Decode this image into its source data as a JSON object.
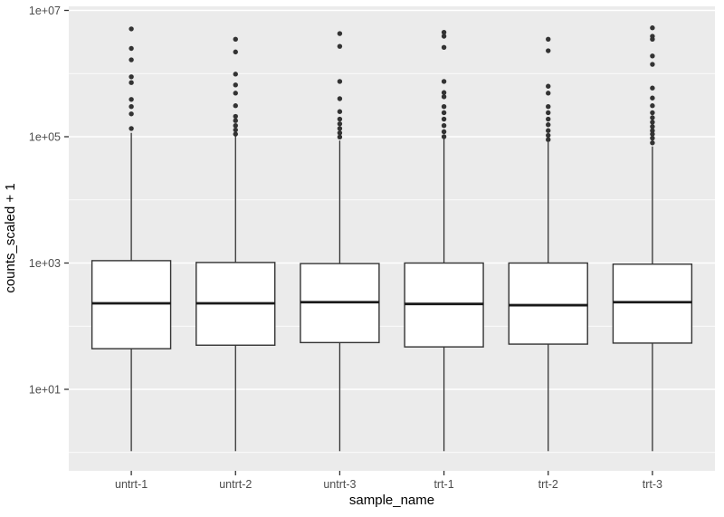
{
  "chart_data": {
    "type": "boxplot",
    "title": "",
    "xlabel": "sample_name",
    "ylabel": "counts_scaled + 1",
    "categories": [
      "untrt-1",
      "untrt-2",
      "untrt-3",
      "trt-1",
      "trt-2",
      "trt-3"
    ],
    "y_axis": {
      "scale": "log10",
      "major_ticks": [
        10,
        1000,
        100000,
        10000000
      ],
      "major_tick_labels": [
        "1e+01",
        "1e+03",
        "1e+05",
        "1e+07"
      ],
      "minor_ticks": [
        1,
        100,
        10000,
        1000000
      ],
      "ylim": [
        0.5,
        11500000
      ],
      "grid": true
    },
    "legend": "none",
    "series": [
      {
        "name": "untrt-1",
        "whisker_low": 1.05,
        "q1": 44,
        "median": 230,
        "q3": 1090,
        "whisker_high": 115000,
        "outliers": [
          5100000,
          2500000,
          1650000,
          890000,
          720000,
          390000,
          300000,
          230000,
          135000
        ]
      },
      {
        "name": "untrt-2",
        "whisker_low": 1.05,
        "q1": 50,
        "median": 230,
        "q3": 1020,
        "whisker_high": 103000,
        "outliers": [
          3500000,
          2200000,
          980000,
          660000,
          490000,
          310000,
          210000,
          180000,
          150000,
          128000,
          110000
        ]
      },
      {
        "name": "untrt-3",
        "whisker_low": 1.05,
        "q1": 55,
        "median": 240,
        "q3": 980,
        "whisker_high": 87000,
        "outliers": [
          4300000,
          2700000,
          750000,
          400000,
          250000,
          190000,
          160000,
          135000,
          115000,
          99000
        ]
      },
      {
        "name": "trt-1",
        "whisker_low": 1.05,
        "q1": 47,
        "median": 225,
        "q3": 1000,
        "whisker_high": 93000,
        "outliers": [
          4500000,
          3900000,
          2600000,
          750000,
          500000,
          430000,
          300000,
          240000,
          190000,
          150000,
          120000,
          100000
        ]
      },
      {
        "name": "trt-2",
        "whisker_low": 1.05,
        "q1": 52,
        "median": 215,
        "q3": 1000,
        "whisker_high": 82000,
        "outliers": [
          3500000,
          2300000,
          630000,
          490000,
          300000,
          240000,
          190000,
          155000,
          125000,
          105000,
          90000
        ]
      },
      {
        "name": "trt-3",
        "whisker_low": 1.05,
        "q1": 54,
        "median": 240,
        "q3": 960,
        "whisker_high": 70000,
        "outliers": [
          5300000,
          3900000,
          3500000,
          1900000,
          1400000,
          590000,
          410000,
          310000,
          240000,
          200000,
          170000,
          145000,
          125000,
          110000,
          95000,
          80000
        ]
      }
    ]
  },
  "style": {
    "panel_bg": "#EBEBEB",
    "grid_color": "#FFFFFF",
    "box_stroke": "#333333",
    "box_fill": "#FFFFFF",
    "median_color": "#1A1A1A",
    "point_color": "#333333",
    "tick_color": "#333333",
    "axis_text_color": "#4D4D4D",
    "axis_title_color": "#000000",
    "outer_bg": "#FFFFFF"
  }
}
